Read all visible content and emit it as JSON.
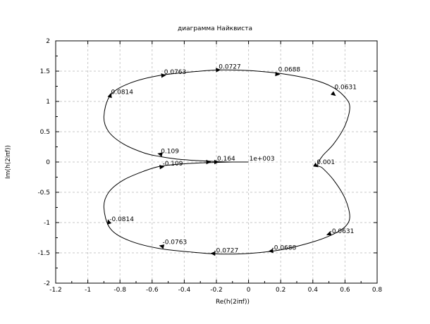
{
  "chart_data": {
    "type": "line",
    "title": "диаграмма Найквиста",
    "xlabel": "Re(h(2iπf))",
    "ylabel": "Im(h(2iπf))",
    "xlim": [
      -1.2,
      0.8
    ],
    "ylim": [
      -2,
      2
    ],
    "grid": true,
    "xticks": [
      "-1.2",
      "-1",
      "-0.8",
      "-0.6",
      "-0.4",
      "-0.2",
      "0",
      "0.2",
      "0.4",
      "0.6",
      "0.8"
    ],
    "yticks": [
      "-2",
      "-1.5",
      "-1",
      "-0.5",
      "0",
      "0.5",
      "1",
      "1.5",
      "2"
    ],
    "series": [
      {
        "values": [
          [
            0.0,
            0.0
          ],
          [
            -0.1,
            0.0
          ],
          [
            -0.17,
            0.005
          ],
          [
            -0.3,
            0.02
          ],
          [
            -0.45,
            0.05
          ],
          [
            -0.55,
            0.09
          ],
          [
            -0.65,
            0.15
          ],
          [
            -0.78,
            0.3
          ],
          [
            -0.87,
            0.5
          ],
          [
            -0.9,
            0.75
          ],
          [
            -0.86,
            1.1
          ],
          [
            -0.74,
            1.3
          ],
          [
            -0.55,
            1.43
          ],
          [
            -0.3,
            1.5
          ],
          [
            -0.17,
            1.52
          ],
          [
            0.0,
            1.51
          ],
          [
            0.2,
            1.46
          ],
          [
            0.4,
            1.36
          ],
          [
            0.52,
            1.24
          ],
          [
            0.6,
            1.07
          ],
          [
            0.63,
            0.9
          ],
          [
            0.6,
            0.6
          ],
          [
            0.53,
            0.3
          ],
          [
            0.46,
            0.1
          ],
          [
            0.43,
            -0.05
          ],
          [
            0.46,
            -0.1
          ],
          [
            0.53,
            -0.3
          ],
          [
            0.6,
            -0.6
          ],
          [
            0.63,
            -0.9
          ],
          [
            0.6,
            -1.07
          ],
          [
            0.52,
            -1.2
          ],
          [
            0.4,
            -1.32
          ],
          [
            0.2,
            -1.45
          ],
          [
            0.0,
            -1.51
          ],
          [
            -0.17,
            -1.52
          ],
          [
            -0.3,
            -1.5
          ],
          [
            -0.55,
            -1.43
          ],
          [
            -0.74,
            -1.3
          ],
          [
            -0.86,
            -1.1
          ],
          [
            -0.9,
            -0.75
          ],
          [
            -0.87,
            -0.5
          ],
          [
            -0.78,
            -0.3
          ],
          [
            -0.65,
            -0.15
          ],
          [
            -0.55,
            -0.07
          ],
          [
            -0.45,
            -0.04
          ],
          [
            -0.3,
            -0.015
          ],
          [
            -0.17,
            -0.005
          ],
          [
            -0.1,
            0.0
          ]
        ]
      }
    ],
    "annotations": [
      {
        "text": "0.0763",
        "x": -0.53,
        "y": 1.43
      },
      {
        "text": "0.0727",
        "x": -0.19,
        "y": 1.52
      },
      {
        "text": "0.0688",
        "x": 0.18,
        "y": 1.47
      },
      {
        "text": "0.0814",
        "x": -0.86,
        "y": 1.1
      },
      {
        "text": "0.0631",
        "x": 0.53,
        "y": 1.18
      },
      {
        "text": "0.109",
        "x": -0.55,
        "y": 0.12
      },
      {
        "text": "0.164",
        "x": -0.2,
        "y": 0.0
      },
      {
        "text": "1e+003",
        "x": 0.0,
        "y": 0.0
      },
      {
        "text": "0.001",
        "x": 0.42,
        "y": -0.06
      },
      {
        "text": "-0.109",
        "x": -0.54,
        "y": -0.08
      },
      {
        "text": "-0.0814",
        "x": -0.87,
        "y": -1.0
      },
      {
        "text": "-0.0631",
        "x": 0.5,
        "y": -1.2
      },
      {
        "text": "-0.0763",
        "x": -0.54,
        "y": -1.38
      },
      {
        "text": "-0.0727",
        "x": -0.22,
        "y": -1.52
      },
      {
        "text": "-0.0688",
        "x": 0.14,
        "y": -1.47
      }
    ],
    "arrows": [
      {
        "x": -0.53,
        "y": 1.43
      },
      {
        "x": -0.19,
        "y": 1.52
      },
      {
        "x": 0.18,
        "y": 1.45
      },
      {
        "x": -0.86,
        "y": 1.1
      },
      {
        "x": 0.53,
        "y": 1.12
      },
      {
        "x": -0.55,
        "y": 0.13
      },
      {
        "x": -0.2,
        "y": 0.0
      },
      {
        "x": -0.25,
        "y": 0.0
      },
      {
        "x": 0.42,
        "y": -0.06
      },
      {
        "x": -0.54,
        "y": -0.08
      },
      {
        "x": -0.87,
        "y": -0.99
      },
      {
        "x": 0.5,
        "y": -1.19
      },
      {
        "x": -0.54,
        "y": -1.39
      },
      {
        "x": -0.22,
        "y": -1.51
      },
      {
        "x": 0.14,
        "y": -1.47
      }
    ]
  }
}
